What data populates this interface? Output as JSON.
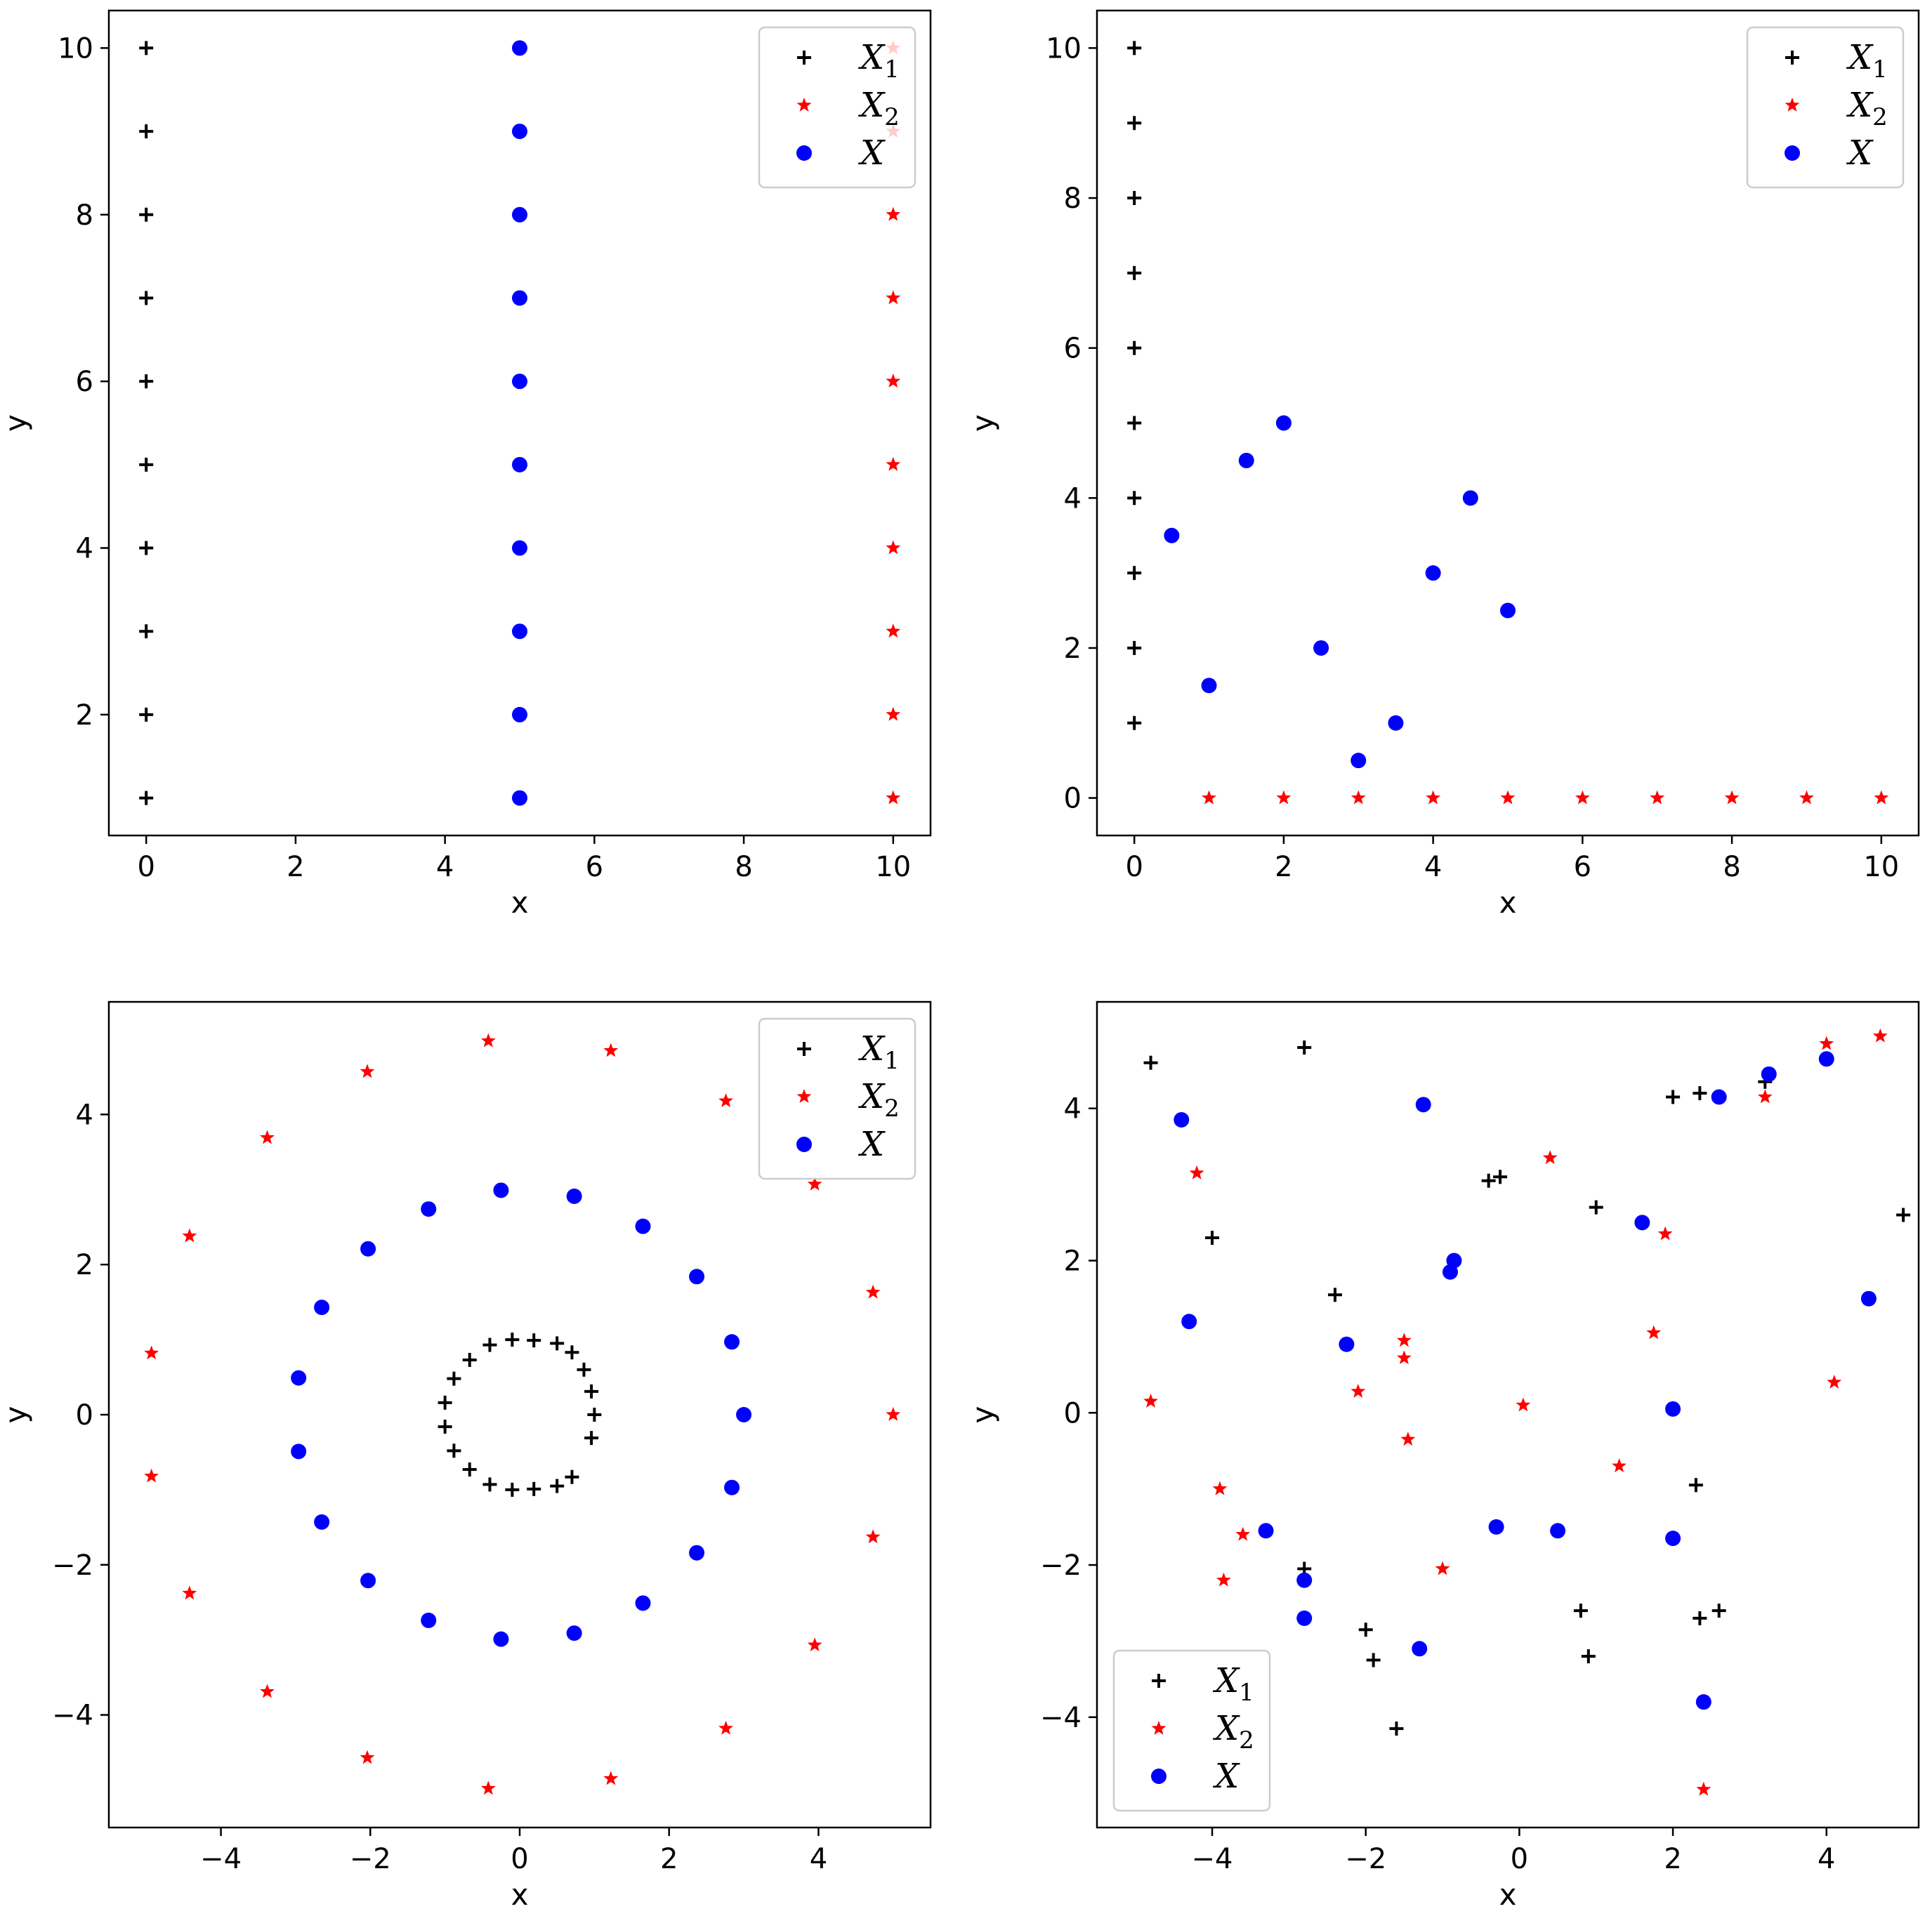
{
  "chart_data": [
    {
      "type": "scatter",
      "xlabel": "x",
      "ylabel": "y",
      "xlim": [
        -0.5,
        10.5
      ],
      "ylim": [
        0.55,
        10.45
      ],
      "xticks": [
        "0",
        "2",
        "4",
        "6",
        "8",
        "10"
      ],
      "xtick_values": [
        0,
        2,
        4,
        6,
        8,
        10
      ],
      "yticks": [
        "2",
        "4",
        "6",
        "8",
        "10"
      ],
      "ytick_values": [
        2,
        4,
        6,
        8,
        10
      ],
      "legend": "top-right",
      "series": [
        {
          "name": "X",
          "sub": "1",
          "marker": "plus",
          "color": "#000000",
          "points": [
            [
              0,
              1
            ],
            [
              0,
              2
            ],
            [
              0,
              3
            ],
            [
              0,
              4
            ],
            [
              0,
              5
            ],
            [
              0,
              6
            ],
            [
              0,
              7
            ],
            [
              0,
              8
            ],
            [
              0,
              9
            ],
            [
              0,
              10
            ]
          ]
        },
        {
          "name": "X",
          "sub": "2",
          "marker": "star",
          "color": "#ff0000",
          "points": [
            [
              10,
              1
            ],
            [
              10,
              2
            ],
            [
              10,
              3
            ],
            [
              10,
              4
            ],
            [
              10,
              5
            ],
            [
              10,
              6
            ],
            [
              10,
              7
            ],
            [
              10,
              8
            ],
            [
              10,
              9
            ],
            [
              10,
              10
            ]
          ]
        },
        {
          "name": "X",
          "sub": "",
          "marker": "circle",
          "color": "#0000ff",
          "points": [
            [
              5,
              1
            ],
            [
              5,
              2
            ],
            [
              5,
              3
            ],
            [
              5,
              4
            ],
            [
              5,
              5
            ],
            [
              5,
              6
            ],
            [
              5,
              7
            ],
            [
              5,
              8
            ],
            [
              5,
              9
            ],
            [
              5,
              10
            ]
          ]
        }
      ]
    },
    {
      "type": "scatter",
      "xlabel": "x",
      "ylabel": "y",
      "xlim": [
        -0.5,
        10.5
      ],
      "ylim": [
        -0.5,
        10.5
      ],
      "xticks": [
        "0",
        "2",
        "4",
        "6",
        "8",
        "10"
      ],
      "xtick_values": [
        0,
        2,
        4,
        6,
        8,
        10
      ],
      "yticks": [
        "0",
        "2",
        "4",
        "6",
        "8",
        "10"
      ],
      "ytick_values": [
        0,
        2,
        4,
        6,
        8,
        10
      ],
      "legend": "top-right",
      "series": [
        {
          "name": "X",
          "sub": "1",
          "marker": "plus",
          "color": "#000000",
          "points": [
            [
              0,
              1
            ],
            [
              0,
              2
            ],
            [
              0,
              3
            ],
            [
              0,
              4
            ],
            [
              0,
              5
            ],
            [
              0,
              6
            ],
            [
              0,
              7
            ],
            [
              0,
              8
            ],
            [
              0,
              9
            ],
            [
              0,
              10
            ]
          ]
        },
        {
          "name": "X",
          "sub": "2",
          "marker": "star",
          "color": "#ff0000",
          "points": [
            [
              1,
              0
            ],
            [
              2,
              0
            ],
            [
              3,
              0
            ],
            [
              4,
              0
            ],
            [
              5,
              0
            ],
            [
              6,
              0
            ],
            [
              7,
              0
            ],
            [
              8,
              0
            ],
            [
              9,
              0
            ],
            [
              10,
              0
            ]
          ]
        },
        {
          "name": "X",
          "sub": "",
          "marker": "circle",
          "color": "#0000ff",
          "points": [
            [
              0.5,
              3.5
            ],
            [
              1,
              1.5
            ],
            [
              1.5,
              4.5
            ],
            [
              2,
              5
            ],
            [
              2.5,
              2
            ],
            [
              3,
              0.5
            ],
            [
              3.5,
              1
            ],
            [
              4,
              3
            ],
            [
              4.5,
              4
            ],
            [
              5,
              2.5
            ]
          ]
        }
      ]
    },
    {
      "type": "scatter",
      "xlabel": "x",
      "ylabel": "y",
      "xlim": [
        -5.5,
        5.5
      ],
      "ylim": [
        -5.5,
        5.5
      ],
      "xticks": [
        "−4",
        "−2",
        "0",
        "2",
        "4"
      ],
      "xtick_values": [
        -4,
        -2,
        0,
        2,
        4
      ],
      "yticks": [
        "−4",
        "−2",
        "0",
        "2",
        "4"
      ],
      "ytick_values": [
        -4,
        -2,
        0,
        2,
        4
      ],
      "legend": "top-right",
      "series": [
        {
          "name": "X",
          "sub": "1",
          "marker": "plus",
          "color": "#000000",
          "points": [
            [
              1.0,
              0.0
            ],
            [
              0.96,
              0.31
            ],
            [
              0.86,
              0.6
            ],
            [
              0.7,
              0.83
            ],
            [
              0.5,
              0.95
            ],
            [
              0.19,
              0.99
            ],
            [
              -0.1,
              1.0
            ],
            [
              -0.4,
              0.93
            ],
            [
              -0.67,
              0.73
            ],
            [
              -0.88,
              0.48
            ],
            [
              -1.0,
              0.16
            ],
            [
              -1.0,
              -0.16
            ],
            [
              -0.88,
              -0.48
            ],
            [
              -0.67,
              -0.73
            ],
            [
              -0.4,
              -0.93
            ],
            [
              -0.1,
              -1.0
            ],
            [
              0.19,
              -0.99
            ],
            [
              0.5,
              -0.95
            ],
            [
              0.7,
              -0.83
            ],
            [
              0.96,
              -0.31
            ]
          ]
        },
        {
          "name": "X",
          "sub": "2",
          "marker": "star",
          "color": "#ff0000",
          "points": [
            [
              5.0,
              0.0
            ],
            [
              4.73,
              1.63
            ],
            [
              3.95,
              3.07
            ],
            [
              2.76,
              4.18
            ],
            [
              1.22,
              4.85
            ],
            [
              -0.42,
              4.98
            ],
            [
              -2.04,
              4.57
            ],
            [
              -3.38,
              3.69
            ],
            [
              -4.42,
              2.38
            ],
            [
              -4.93,
              0.82
            ],
            [
              -4.93,
              -0.82
            ],
            [
              -4.42,
              -2.38
            ],
            [
              -3.38,
              -3.69
            ],
            [
              -2.04,
              -4.57
            ],
            [
              -0.42,
              -4.98
            ],
            [
              1.22,
              -4.85
            ],
            [
              2.76,
              -4.18
            ],
            [
              3.95,
              -3.07
            ],
            [
              4.73,
              -1.63
            ]
          ]
        },
        {
          "name": "X",
          "sub": "",
          "marker": "circle",
          "color": "#0000ff",
          "points": [
            [
              3.0,
              0.0
            ],
            [
              2.84,
              0.97
            ],
            [
              2.37,
              1.84
            ],
            [
              1.65,
              2.51
            ],
            [
              0.73,
              2.91
            ],
            [
              -0.25,
              2.99
            ],
            [
              -1.22,
              2.74
            ],
            [
              -2.03,
              2.21
            ],
            [
              -2.65,
              1.43
            ],
            [
              -2.96,
              0.49
            ],
            [
              -2.96,
              -0.49
            ],
            [
              -2.65,
              -1.43
            ],
            [
              -2.03,
              -2.21
            ],
            [
              -1.22,
              -2.74
            ],
            [
              -0.25,
              -2.99
            ],
            [
              0.73,
              -2.91
            ],
            [
              1.65,
              -2.51
            ],
            [
              2.37,
              -1.84
            ],
            [
              2.84,
              -0.97
            ]
          ]
        }
      ]
    },
    {
      "type": "scatter",
      "xlabel": "x",
      "ylabel": "y",
      "xlim": [
        -5.5,
        5.2
      ],
      "ylim": [
        -5.45,
        5.4
      ],
      "xticks": [
        "−4",
        "−2",
        "0",
        "2",
        "4"
      ],
      "xtick_values": [
        -4,
        -2,
        0,
        2,
        4
      ],
      "yticks": [
        "−4",
        "−2",
        "0",
        "2",
        "4"
      ],
      "ytick_values": [
        -4,
        -2,
        0,
        2,
        4
      ],
      "legend": "bottom-left",
      "series": [
        {
          "name": "X",
          "sub": "1",
          "marker": "plus",
          "color": "#000000",
          "points": [
            [
              -4.8,
              4.6
            ],
            [
              -2.8,
              4.8
            ],
            [
              -4.0,
              2.3
            ],
            [
              -2.4,
              1.55
            ],
            [
              -2.8,
              -2.05
            ],
            [
              -2.0,
              -2.85
            ],
            [
              -1.9,
              -3.25
            ],
            [
              -1.6,
              -4.15
            ],
            [
              -0.4,
              3.05
            ],
            [
              -0.25,
              3.1
            ],
            [
              1.0,
              2.7
            ],
            [
              2.0,
              4.15
            ],
            [
              2.35,
              4.2
            ],
            [
              3.2,
              4.35
            ],
            [
              5.0,
              2.6
            ],
            [
              2.3,
              -0.95
            ],
            [
              2.35,
              -2.7
            ],
            [
              2.6,
              -2.6
            ],
            [
              0.8,
              -2.6
            ],
            [
              0.9,
              -3.2
            ]
          ]
        },
        {
          "name": "X",
          "sub": "2",
          "marker": "star",
          "color": "#ff0000",
          "points": [
            [
              -4.8,
              0.15
            ],
            [
              -4.2,
              3.15
            ],
            [
              -3.9,
              -1.0
            ],
            [
              -3.85,
              -2.2
            ],
            [
              -3.6,
              -1.6
            ],
            [
              -2.1,
              0.28
            ],
            [
              -1.5,
              0.95
            ],
            [
              -1.5,
              0.72
            ],
            [
              -1.45,
              -0.35
            ],
            [
              -1.0,
              -2.05
            ],
            [
              0.05,
              0.1
            ],
            [
              0.4,
              3.35
            ],
            [
              1.3,
              -0.7
            ],
            [
              1.75,
              1.05
            ],
            [
              1.9,
              2.35
            ],
            [
              3.2,
              4.15
            ],
            [
              4.0,
              4.85
            ],
            [
              4.1,
              0.4
            ],
            [
              4.7,
              4.95
            ],
            [
              2.4,
              -4.95
            ]
          ]
        },
        {
          "name": "X",
          "sub": "",
          "marker": "circle",
          "color": "#0000ff",
          "points": [
            [
              -4.4,
              3.85
            ],
            [
              -4.3,
              1.2
            ],
            [
              -3.3,
              -1.55
            ],
            [
              -2.8,
              -2.2
            ],
            [
              -2.8,
              -2.7
            ],
            [
              -2.25,
              0.9
            ],
            [
              -1.25,
              4.05
            ],
            [
              -1.3,
              -3.1
            ],
            [
              -0.9,
              1.85
            ],
            [
              -0.85,
              2.0
            ],
            [
              -0.3,
              -1.5
            ],
            [
              0.5,
              -1.55
            ],
            [
              1.6,
              2.5
            ],
            [
              2.0,
              0.05
            ],
            [
              2.0,
              -1.65
            ],
            [
              2.6,
              4.15
            ],
            [
              3.25,
              4.45
            ],
            [
              4.0,
              4.65
            ],
            [
              4.55,
              1.5
            ],
            [
              2.4,
              -3.8
            ]
          ]
        }
      ]
    }
  ]
}
